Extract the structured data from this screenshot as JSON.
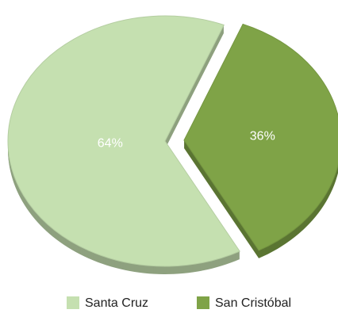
{
  "chart_data": {
    "type": "pie",
    "categories": [
      "Santa Cruz",
      "San Cristóbal"
    ],
    "values": [
      64,
      36
    ],
    "value_labels": [
      "64%",
      "36%"
    ],
    "colors": [
      "#c5e0b0",
      "#7fa347"
    ]
  }
}
